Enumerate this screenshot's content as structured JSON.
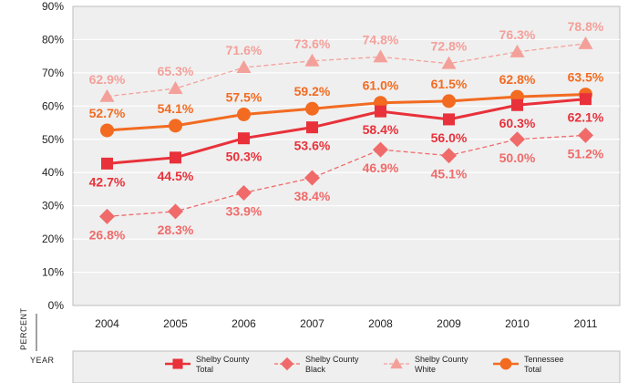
{
  "chart_data": {
    "type": "line",
    "title": "",
    "xlabel": "YEAR",
    "ylabel": "PERCENT",
    "categories": [
      "2004",
      "2005",
      "2006",
      "2007",
      "2008",
      "2009",
      "2010",
      "2011"
    ],
    "y_ticks": [
      "0%",
      "10%",
      "20%",
      "30%",
      "40%",
      "50%",
      "60%",
      "70%",
      "80%",
      "90%"
    ],
    "ylim": [
      0,
      90
    ],
    "grid": true,
    "legend_position": "bottom",
    "series": [
      {
        "key": "shelby-white",
        "name_lines": [
          "Shelby County",
          "White"
        ],
        "color": "#f4a09a",
        "marker": "triangle",
        "dashed": true,
        "values": [
          62.9,
          65.3,
          71.6,
          73.6,
          74.8,
          72.8,
          76.3,
          78.8
        ],
        "labels": [
          "62.9%",
          "65.3%",
          "71.6%",
          "73.6%",
          "74.8%",
          "72.8%",
          "76.3%",
          "78.8%"
        ],
        "label_pos": "above"
      },
      {
        "key": "tennessee-total",
        "name_lines": [
          "Tennessee",
          "Total"
        ],
        "color": "#f26b21",
        "marker": "circle",
        "dashed": false,
        "values": [
          52.7,
          54.1,
          57.5,
          59.2,
          61.0,
          61.5,
          62.8,
          63.5
        ],
        "labels": [
          "52.7%",
          "54.1%",
          "57.5%",
          "59.2%",
          "61.0%",
          "61.5%",
          "62.8%",
          "63.5%"
        ],
        "label_pos": "above"
      },
      {
        "key": "shelby-total",
        "name_lines": [
          "Shelby County",
          "Total"
        ],
        "color": "#e8313a",
        "marker": "square",
        "dashed": false,
        "values": [
          42.7,
          44.5,
          50.3,
          53.6,
          58.4,
          56.0,
          60.3,
          62.1
        ],
        "labels": [
          "42.7%",
          "44.5%",
          "50.3%",
          "53.6%",
          "58.4%",
          "56.0%",
          "60.3%",
          "62.1%"
        ],
        "label_pos": "below"
      },
      {
        "key": "shelby-black",
        "name_lines": [
          "Shelby County",
          "Black"
        ],
        "color": "#f06a6a",
        "marker": "diamond",
        "dashed": true,
        "values": [
          26.8,
          28.3,
          33.9,
          38.4,
          46.9,
          45.1,
          50.0,
          51.2
        ],
        "labels": [
          "26.8%",
          "28.3%",
          "33.9%",
          "38.4%",
          "46.9%",
          "45.1%",
          "50.0%",
          "51.2%"
        ],
        "label_pos": "below"
      }
    ],
    "legend_order": [
      "shelby-total",
      "shelby-black",
      "shelby-white",
      "tennessee-total"
    ]
  }
}
